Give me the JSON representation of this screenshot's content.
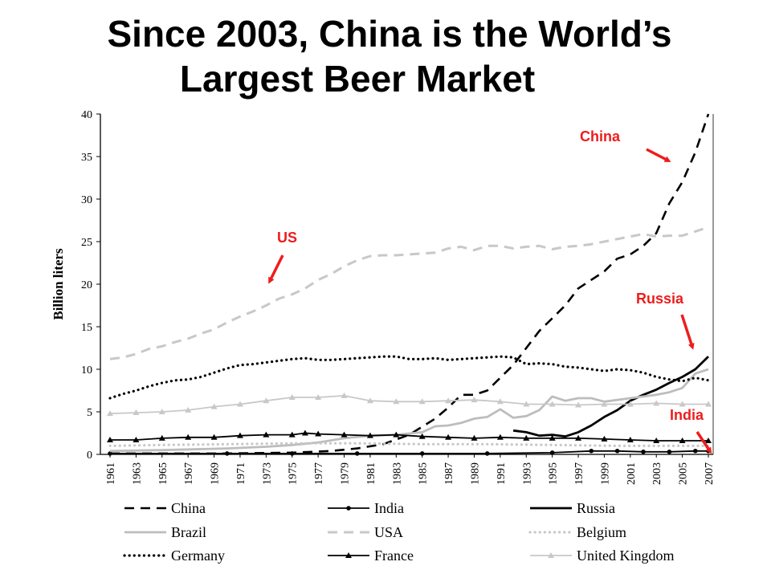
{
  "title_line1": "Since 2003, China is the World’s",
  "title_line2": "Largest Beer Market",
  "colors": {
    "annotation": "#ee1c1c",
    "black": "#000000",
    "gray": "#bdbdbd",
    "lightgray": "#d0d0d0"
  },
  "annotations": [
    {
      "label": "China",
      "points_to_year": 2005,
      "points_to_value": 34
    },
    {
      "label": "US",
      "points_to_year": 1973,
      "points_to_value": 20
    },
    {
      "label": "Russia",
      "points_to_year": 2006,
      "points_to_value": 12.5
    },
    {
      "label": "India",
      "points_to_year": 2007,
      "points_to_value": 0.3
    }
  ],
  "chart_data": {
    "type": "line",
    "title": "",
    "xlabel": "",
    "ylabel": "Billion liters",
    "xlim": [
      1961,
      2007
    ],
    "ylim": [
      0,
      40
    ],
    "yticks": [
      0,
      5,
      10,
      15,
      20,
      25,
      30,
      35,
      40
    ],
    "xticks": [
      1961,
      1963,
      1965,
      1967,
      1969,
      1971,
      1973,
      1975,
      1977,
      1979,
      1981,
      1983,
      1985,
      1987,
      1989,
      1991,
      1993,
      1995,
      1997,
      1999,
      2001,
      2003,
      2005,
      2007
    ],
    "grid": false,
    "legend": "bottom",
    "series": [
      {
        "name": "China",
        "style": "dash",
        "color": "#000000",
        "points": [
          [
            1961,
            0.1
          ],
          [
            1970,
            0.1
          ],
          [
            1975,
            0.2
          ],
          [
            1978,
            0.4
          ],
          [
            1980,
            0.7
          ],
          [
            1982,
            1.2
          ],
          [
            1984,
            2.3
          ],
          [
            1986,
            4.2
          ],
          [
            1987,
            5.5
          ],
          [
            1988,
            7.0
          ],
          [
            1989,
            7.0
          ],
          [
            1990,
            7.5
          ],
          [
            1991,
            9.0
          ],
          [
            1992,
            10.5
          ],
          [
            1993,
            12.5
          ],
          [
            1994,
            14.5
          ],
          [
            1995,
            16.0
          ],
          [
            1996,
            17.5
          ],
          [
            1997,
            19.5
          ],
          [
            1998,
            20.5
          ],
          [
            1999,
            21.5
          ],
          [
            2000,
            23.0
          ],
          [
            2001,
            23.5
          ],
          [
            2002,
            24.5
          ],
          [
            2003,
            26.0
          ],
          [
            2004,
            29.5
          ],
          [
            2005,
            32.0
          ],
          [
            2006,
            35.5
          ],
          [
            2007,
            40.0
          ]
        ]
      },
      {
        "name": "India",
        "style": "solid-circle",
        "color": "#000000",
        "points": [
          [
            1961,
            0.1
          ],
          [
            1970,
            0.1
          ],
          [
            1975,
            0.1
          ],
          [
            1980,
            0.1
          ],
          [
            1985,
            0.1
          ],
          [
            1990,
            0.1
          ],
          [
            1995,
            0.2
          ],
          [
            1998,
            0.4
          ],
          [
            2000,
            0.4
          ],
          [
            2002,
            0.3
          ],
          [
            2004,
            0.3
          ],
          [
            2006,
            0.4
          ],
          [
            2007,
            0.4
          ]
        ]
      },
      {
        "name": "Russia",
        "style": "solid-thick",
        "color": "#000000",
        "points": [
          [
            1992,
            2.8
          ],
          [
            1993,
            2.6
          ],
          [
            1994,
            2.2
          ],
          [
            1995,
            2.3
          ],
          [
            1996,
            2.1
          ],
          [
            1997,
            2.6
          ],
          [
            1998,
            3.4
          ],
          [
            1999,
            4.4
          ],
          [
            2000,
            5.2
          ],
          [
            2001,
            6.3
          ],
          [
            2002,
            7.0
          ],
          [
            2003,
            7.6
          ],
          [
            2004,
            8.4
          ],
          [
            2005,
            9.1
          ],
          [
            2006,
            10.0
          ],
          [
            2007,
            11.5
          ]
        ]
      },
      {
        "name": "Brazil",
        "style": "solid-thick",
        "color": "#bdbdbd",
        "points": [
          [
            1961,
            0.4
          ],
          [
            1965,
            0.5
          ],
          [
            1970,
            0.7
          ],
          [
            1973,
            0.9
          ],
          [
            1975,
            1.1
          ],
          [
            1977,
            1.4
          ],
          [
            1979,
            1.9
          ],
          [
            1981,
            2.2
          ],
          [
            1983,
            2.3
          ],
          [
            1985,
            2.6
          ],
          [
            1986,
            3.3
          ],
          [
            1987,
            3.4
          ],
          [
            1988,
            3.7
          ],
          [
            1989,
            4.2
          ],
          [
            1990,
            4.4
          ],
          [
            1991,
            5.3
          ],
          [
            1992,
            4.3
          ],
          [
            1993,
            4.5
          ],
          [
            1994,
            5.2
          ],
          [
            1995,
            6.8
          ],
          [
            1996,
            6.3
          ],
          [
            1997,
            6.6
          ],
          [
            1998,
            6.6
          ],
          [
            1999,
            6.2
          ],
          [
            2000,
            6.4
          ],
          [
            2001,
            6.6
          ],
          [
            2002,
            6.8
          ],
          [
            2003,
            7.0
          ],
          [
            2004,
            7.3
          ],
          [
            2005,
            7.8
          ],
          [
            2006,
            9.5
          ],
          [
            2007,
            10.0
          ]
        ]
      },
      {
        "name": "USA",
        "style": "dash-thick",
        "color": "#c8c8c8",
        "points": [
          [
            1961,
            11.2
          ],
          [
            1962,
            11.4
          ],
          [
            1963,
            11.8
          ],
          [
            1964,
            12.4
          ],
          [
            1965,
            12.7
          ],
          [
            1966,
            13.2
          ],
          [
            1967,
            13.6
          ],
          [
            1968,
            14.2
          ],
          [
            1969,
            14.7
          ],
          [
            1970,
            15.5
          ],
          [
            1971,
            16.2
          ],
          [
            1972,
            16.8
          ],
          [
            1973,
            17.5
          ],
          [
            1974,
            18.3
          ],
          [
            1975,
            18.8
          ],
          [
            1976,
            19.5
          ],
          [
            1977,
            20.5
          ],
          [
            1978,
            21.2
          ],
          [
            1979,
            22.1
          ],
          [
            1980,
            22.8
          ],
          [
            1981,
            23.3
          ],
          [
            1982,
            23.4
          ],
          [
            1983,
            23.4
          ],
          [
            1984,
            23.5
          ],
          [
            1985,
            23.6
          ],
          [
            1986,
            23.7
          ],
          [
            1987,
            24.2
          ],
          [
            1988,
            24.4
          ],
          [
            1989,
            24.0
          ],
          [
            1990,
            24.5
          ],
          [
            1991,
            24.5
          ],
          [
            1992,
            24.2
          ],
          [
            1993,
            24.4
          ],
          [
            1994,
            24.5
          ],
          [
            1995,
            24.1
          ],
          [
            1996,
            24.4
          ],
          [
            1997,
            24.5
          ],
          [
            1998,
            24.7
          ],
          [
            1999,
            25.0
          ],
          [
            2000,
            25.3
          ],
          [
            2001,
            25.6
          ],
          [
            2002,
            25.9
          ],
          [
            2003,
            25.6
          ],
          [
            2004,
            25.7
          ],
          [
            2005,
            25.7
          ],
          [
            2006,
            26.2
          ],
          [
            2007,
            26.7
          ]
        ]
      },
      {
        "name": "Belgium",
        "style": "dot",
        "color": "#c8c8c8",
        "points": [
          [
            1961,
            1.0
          ],
          [
            1965,
            1.1
          ],
          [
            1970,
            1.2
          ],
          [
            1975,
            1.3
          ],
          [
            1980,
            1.3
          ],
          [
            1985,
            1.2
          ],
          [
            1990,
            1.2
          ],
          [
            1995,
            1.1
          ],
          [
            2000,
            1.0
          ],
          [
            2005,
            1.0
          ],
          [
            2007,
            1.0
          ]
        ]
      },
      {
        "name": "Germany",
        "style": "dot",
        "color": "#000000",
        "points": [
          [
            1961,
            6.6
          ],
          [
            1962,
            7.1
          ],
          [
            1963,
            7.5
          ],
          [
            1964,
            8.0
          ],
          [
            1965,
            8.4
          ],
          [
            1966,
            8.7
          ],
          [
            1967,
            8.8
          ],
          [
            1968,
            9.1
          ],
          [
            1969,
            9.6
          ],
          [
            1970,
            10.1
          ],
          [
            1971,
            10.5
          ],
          [
            1972,
            10.6
          ],
          [
            1973,
            10.8
          ],
          [
            1974,
            11.0
          ],
          [
            1975,
            11.2
          ],
          [
            1976,
            11.3
          ],
          [
            1977,
            11.1
          ],
          [
            1978,
            11.1
          ],
          [
            1979,
            11.2
          ],
          [
            1980,
            11.3
          ],
          [
            1981,
            11.4
          ],
          [
            1982,
            11.5
          ],
          [
            1983,
            11.5
          ],
          [
            1984,
            11.2
          ],
          [
            1985,
            11.2
          ],
          [
            1986,
            11.3
          ],
          [
            1987,
            11.1
          ],
          [
            1988,
            11.2
          ],
          [
            1989,
            11.3
          ],
          [
            1990,
            11.4
          ],
          [
            1991,
            11.5
          ],
          [
            1992,
            11.4
          ],
          [
            1993,
            10.6
          ],
          [
            1994,
            10.7
          ],
          [
            1995,
            10.6
          ],
          [
            1996,
            10.3
          ],
          [
            1997,
            10.2
          ],
          [
            1998,
            10.0
          ],
          [
            1999,
            9.8
          ],
          [
            2000,
            10.0
          ],
          [
            2001,
            9.9
          ],
          [
            2002,
            9.6
          ],
          [
            2003,
            9.1
          ],
          [
            2004,
            8.8
          ],
          [
            2005,
            8.6
          ],
          [
            2006,
            9.0
          ],
          [
            2007,
            8.7
          ]
        ]
      },
      {
        "name": "France",
        "style": "solid-triangle",
        "color": "#000000",
        "points": [
          [
            1961,
            1.7
          ],
          [
            1963,
            1.7
          ],
          [
            1965,
            1.9
          ],
          [
            1967,
            2.0
          ],
          [
            1969,
            2.0
          ],
          [
            1971,
            2.2
          ],
          [
            1973,
            2.3
          ],
          [
            1975,
            2.3
          ],
          [
            1976,
            2.5
          ],
          [
            1977,
            2.4
          ],
          [
            1979,
            2.3
          ],
          [
            1981,
            2.2
          ],
          [
            1983,
            2.3
          ],
          [
            1985,
            2.1
          ],
          [
            1987,
            2.0
          ],
          [
            1989,
            1.9
          ],
          [
            1991,
            2.0
          ],
          [
            1993,
            1.9
          ],
          [
            1995,
            1.9
          ],
          [
            1997,
            1.9
          ],
          [
            1999,
            1.8
          ],
          [
            2001,
            1.7
          ],
          [
            2003,
            1.6
          ],
          [
            2005,
            1.6
          ],
          [
            2007,
            1.6
          ]
        ]
      },
      {
        "name": "United Kingdom",
        "style": "solid-triangle",
        "color": "#c8c8c8",
        "points": [
          [
            1961,
            4.8
          ],
          [
            1963,
            4.9
          ],
          [
            1965,
            5.0
          ],
          [
            1967,
            5.2
          ],
          [
            1969,
            5.6
          ],
          [
            1971,
            5.9
          ],
          [
            1973,
            6.3
          ],
          [
            1975,
            6.7
          ],
          [
            1977,
            6.7
          ],
          [
            1979,
            6.9
          ],
          [
            1981,
            6.3
          ],
          [
            1983,
            6.2
          ],
          [
            1985,
            6.2
          ],
          [
            1987,
            6.3
          ],
          [
            1989,
            6.4
          ],
          [
            1991,
            6.2
          ],
          [
            1993,
            5.9
          ],
          [
            1995,
            5.9
          ],
          [
            1997,
            5.8
          ],
          [
            1999,
            5.9
          ],
          [
            2001,
            5.9
          ],
          [
            2003,
            6.0
          ],
          [
            2005,
            5.9
          ],
          [
            2007,
            5.9
          ]
        ]
      }
    ]
  }
}
